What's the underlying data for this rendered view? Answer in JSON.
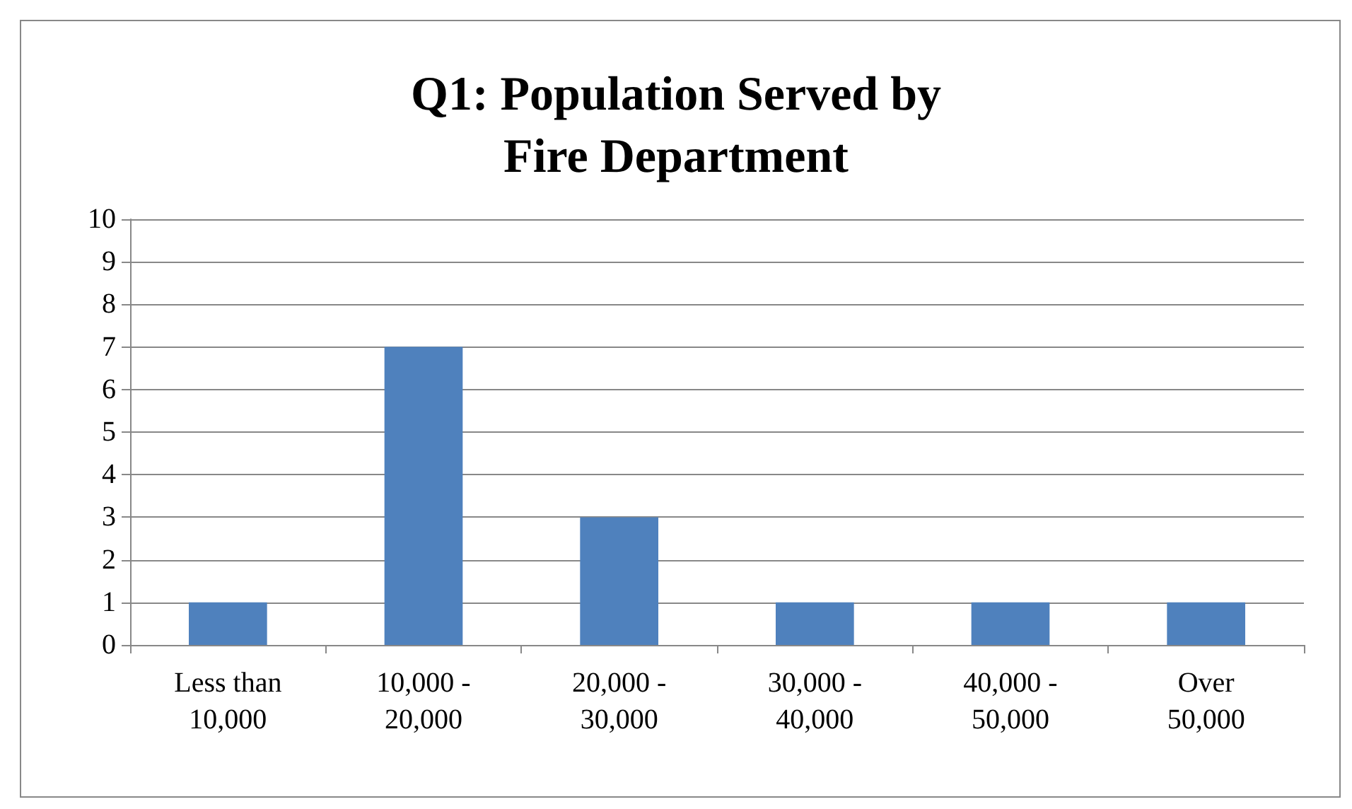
{
  "chart_data": {
    "type": "bar",
    "title": "Q1: Population Served by\nFire Department",
    "categories": [
      "Less than 10,000",
      "10,000 - 20,000",
      "20,000 - 30,000",
      "30,000 - 40,000",
      "40,000 - 50,000",
      "Over 50,000"
    ],
    "values": [
      1,
      7,
      3,
      1,
      1,
      1
    ],
    "color": "#4f81bd",
    "ylim": [
      0,
      10
    ],
    "yticks": [
      0,
      1,
      2,
      3,
      4,
      5,
      6,
      7,
      8,
      9,
      10
    ],
    "grid": "y"
  }
}
